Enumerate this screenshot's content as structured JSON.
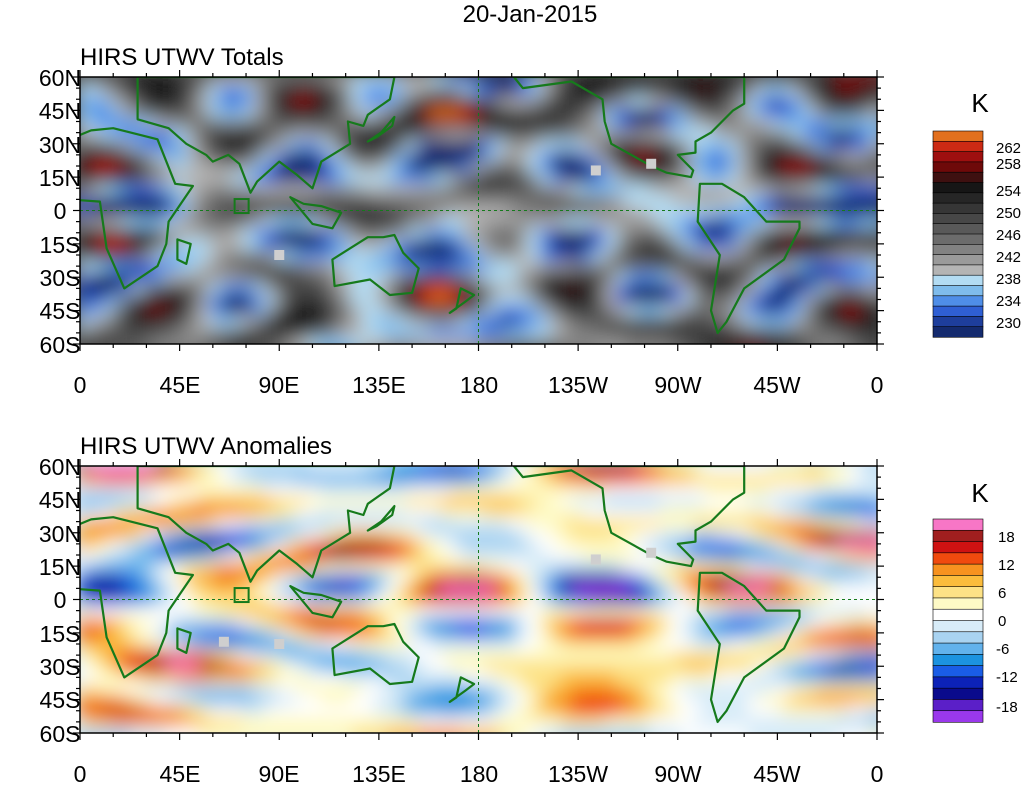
{
  "date_title": "20-Jan-2015",
  "panels": [
    {
      "title": "HIRS UTWV Totals",
      "legend_unit": "K",
      "legend_labels": [
        "262",
        "258",
        "254",
        "250",
        "246",
        "242",
        "238",
        "234",
        "230"
      ],
      "legend_colors": [
        "#e2701e",
        "#cc2a14",
        "#9e0f0f",
        "#6e0909",
        "#3e1010",
        "#161616",
        "#262626",
        "#363636",
        "#474747",
        "#595959",
        "#6c6c6c",
        "#828282",
        "#9a9a9a",
        "#b4b4b4",
        "#b3dcf3",
        "#7fbcec",
        "#4f8ee8",
        "#2f5fd4",
        "#1e3e9c",
        "#142a6e"
      ],
      "palette": [
        "#142a6e",
        "#1e3e9c",
        "#2f5fd4",
        "#4f8ee8",
        "#7fbcec",
        "#b3dcf3",
        "#b4b4b4",
        "#9a9a9a",
        "#828282",
        "#6c6c6c",
        "#595959",
        "#474747",
        "#363636",
        "#262626",
        "#161616",
        "#3e1010",
        "#6e0909",
        "#9e0f0f",
        "#cc2a14",
        "#e2701e"
      ]
    },
    {
      "title": "HIRS UTWV Anomalies",
      "legend_unit": "K",
      "legend_labels": [
        "18",
        "12",
        "6",
        "0",
        "-6",
        "-12",
        "-18"
      ],
      "legend_colors": [
        "#f776c6",
        "#a01f1f",
        "#cf1212",
        "#f04a0e",
        "#f7921f",
        "#fbbc3c",
        "#fde286",
        "#fefac6",
        "#ffffff",
        "#d8ecf8",
        "#a9d3f1",
        "#62b2ec",
        "#1c93e0",
        "#1a5de6",
        "#0c22b8",
        "#0a0a8c",
        "#5b1fc8",
        "#9a38ec"
      ],
      "palette": [
        "#9a38ec",
        "#5b1fc8",
        "#0a0a8c",
        "#0c22b8",
        "#1a5de6",
        "#1c93e0",
        "#62b2ec",
        "#a9d3f1",
        "#d8ecf8",
        "#ffffff",
        "#fefac6",
        "#fde286",
        "#fbbc3c",
        "#f7921f",
        "#f04a0e",
        "#cf1212",
        "#a01f1f",
        "#f776c6"
      ]
    }
  ],
  "lat_labels": [
    "60N",
    "45N",
    "30N",
    "15N",
    "0",
    "15S",
    "30S",
    "45S",
    "60S"
  ],
  "lon_labels": [
    "0",
    "45E",
    "90E",
    "135E",
    "180",
    "135W",
    "90W",
    "45W",
    "0"
  ],
  "colors": {
    "coastline": "#167a1c",
    "border": "#167a1c",
    "missing": "#cfcfcf"
  }
}
